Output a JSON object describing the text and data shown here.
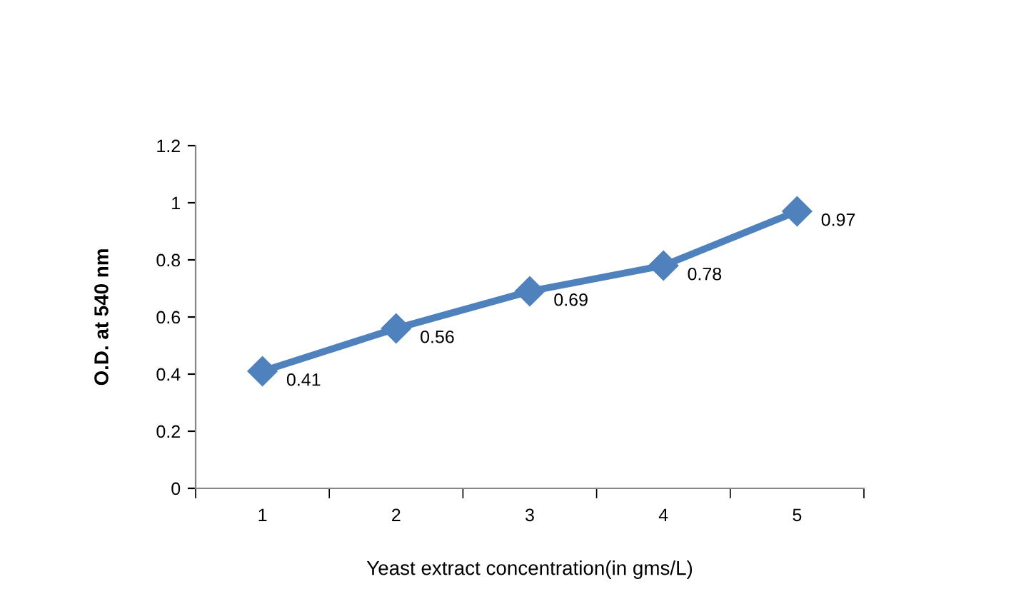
{
  "chart_data": {
    "type": "line",
    "xlabel": "Yeast extract concentration(in gms/L)",
    "ylabel": "O.D. at 540 nm",
    "categories": [
      "1",
      "2",
      "3",
      "4",
      "5"
    ],
    "series": [
      {
        "color": "#4f81bd",
        "values": [
          0.41,
          0.56,
          0.69,
          0.78,
          0.97
        ]
      }
    ],
    "ylim": [
      0,
      1.2
    ],
    "yticks": [
      0,
      0.2,
      0.4,
      0.6,
      0.8,
      1,
      1.2
    ],
    "marker": "diamond",
    "line_style": "solid",
    "data_labels": true,
    "grid": false,
    "legend": false
  }
}
